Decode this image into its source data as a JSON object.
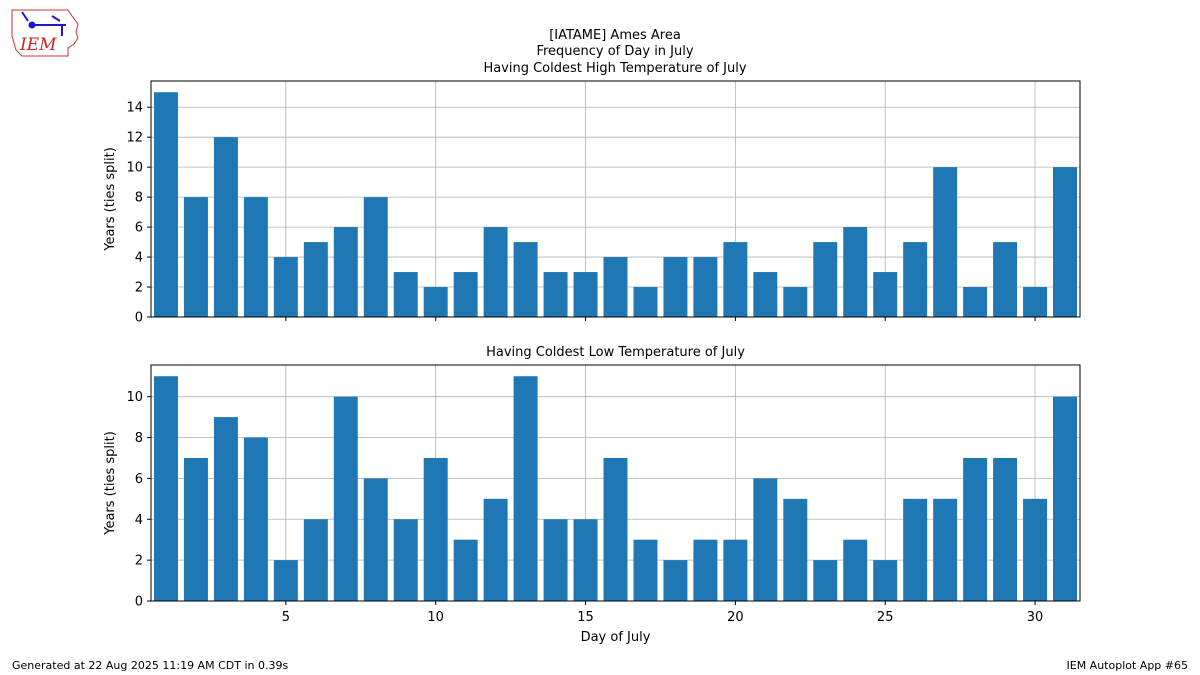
{
  "header": {
    "title_lines": [
      "[IATAME] Ames Area",
      "Frequency of Day in July",
      "Having Coldest High Temperature of July"
    ],
    "logo_text": "IEM"
  },
  "footer": {
    "left": "Generated at 22 Aug 2025 11:19 AM CDT in 0.39s",
    "right": "IEM Autoplot App #65"
  },
  "colors": {
    "bar": "#1f77b4",
    "grid": "#b0b0b0",
    "logo_outline": "#cc3333",
    "logo_text": "#cc2222",
    "logo_icon": "#1a1acc"
  },
  "chart_data": [
    {
      "type": "bar",
      "title": "Having Coldest High Temperature of July",
      "xlabel": "",
      "ylabel": "Years (ties split)",
      "x": [
        1,
        2,
        3,
        4,
        5,
        6,
        7,
        8,
        9,
        10,
        11,
        12,
        13,
        14,
        15,
        16,
        17,
        18,
        19,
        20,
        21,
        22,
        23,
        24,
        25,
        26,
        27,
        28,
        29,
        30,
        31
      ],
      "values": [
        15,
        8,
        12,
        8,
        4,
        5,
        6,
        8,
        3,
        2,
        3,
        6,
        5,
        3,
        3,
        4,
        2,
        4,
        4,
        5,
        3,
        2,
        5,
        6,
        3,
        5,
        10,
        2,
        5,
        2,
        10
      ],
      "xlim": [
        0.5,
        31.5
      ],
      "ylim": [
        0,
        15.75
      ],
      "xticks": [
        5,
        10,
        15,
        20,
        25,
        30
      ],
      "yticks": [
        0,
        2,
        4,
        6,
        8,
        10,
        12,
        14
      ],
      "show_xtick_labels": false,
      "grid": true
    },
    {
      "type": "bar",
      "title": "Having Coldest Low Temperature of July",
      "xlabel": "Day of July",
      "ylabel": "Years (ties split)",
      "x": [
        1,
        2,
        3,
        4,
        5,
        6,
        7,
        8,
        9,
        10,
        11,
        12,
        13,
        14,
        15,
        16,
        17,
        18,
        19,
        20,
        21,
        22,
        23,
        24,
        25,
        26,
        27,
        28,
        29,
        30,
        31
      ],
      "values": [
        11,
        7,
        9,
        8,
        2,
        4,
        10,
        6,
        4,
        7,
        3,
        5,
        11,
        4,
        4,
        7,
        3,
        2,
        3,
        3,
        6,
        5,
        2,
        3,
        2,
        5,
        5,
        7,
        7,
        5,
        10
      ],
      "xlim": [
        0.5,
        31.5
      ],
      "ylim": [
        0,
        11.55
      ],
      "xticks": [
        5,
        10,
        15,
        20,
        25,
        30
      ],
      "yticks": [
        0,
        2,
        4,
        6,
        8,
        10
      ],
      "show_xtick_labels": true,
      "grid": true
    }
  ]
}
